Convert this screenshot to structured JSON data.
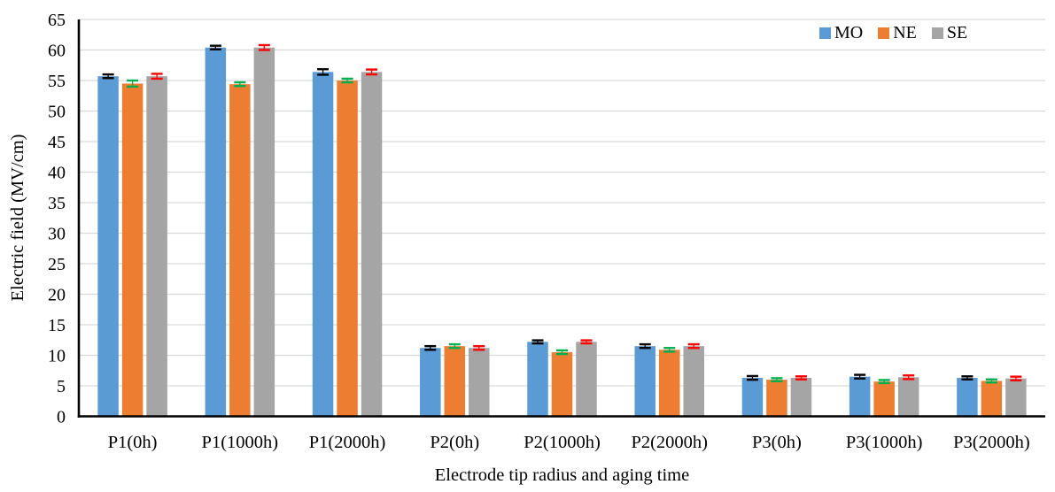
{
  "chart_data": {
    "type": "bar",
    "title": "",
    "xlabel": "Electrode tip radius and aging time",
    "ylabel": "Electric field (MV/cm)",
    "categories": [
      "P1(0h)",
      "P1(1000h)",
      "P1(2000h)",
      "P2(0h)",
      "P2(1000h)",
      "P2(2000h)",
      "P3(0h)",
      "P3(1000h)",
      "P3(2000h)"
    ],
    "series": [
      {
        "name": "MO",
        "color": "#5B9BD5",
        "error_bar_color": "#000000",
        "values": [
          55.7,
          60.4,
          56.4,
          11.2,
          12.2,
          11.5,
          6.3,
          6.5,
          6.3
        ],
        "errors": [
          0.3,
          0.3,
          0.45,
          0.3,
          0.25,
          0.3,
          0.3,
          0.3,
          0.25
        ]
      },
      {
        "name": "NE",
        "color": "#ED7D31",
        "error_bar_color": "#00B050",
        "values": [
          54.5,
          54.4,
          55.0,
          11.5,
          10.5,
          10.9,
          6.0,
          5.7,
          5.8
        ],
        "errors": [
          0.5,
          0.3,
          0.3,
          0.3,
          0.3,
          0.3,
          0.25,
          0.25,
          0.25
        ]
      },
      {
        "name": "SE",
        "color": "#A5A5A5",
        "error_bar_color": "#FF0000",
        "values": [
          55.7,
          60.4,
          56.4,
          11.2,
          12.2,
          11.5,
          6.3,
          6.4,
          6.2
        ],
        "errors": [
          0.4,
          0.4,
          0.4,
          0.3,
          0.25,
          0.3,
          0.25,
          0.3,
          0.3
        ]
      }
    ],
    "ylim": [
      0,
      65
    ],
    "ytick_step": 5,
    "yticks": [
      0,
      5,
      10,
      15,
      20,
      25,
      30,
      35,
      40,
      45,
      50,
      55,
      60,
      65
    ],
    "grid": true,
    "gridline_color": "#D9D9D9",
    "axis_color": "#000000",
    "legend_position": "top-right"
  }
}
